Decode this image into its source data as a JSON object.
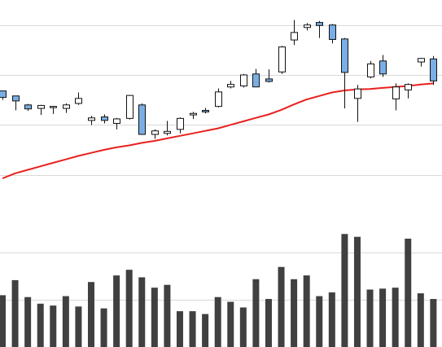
{
  "chart_data": {
    "type": "candlestick",
    "title": "",
    "xlabel": "",
    "ylabel": "",
    "grid": true,
    "legend": "none",
    "colors": {
      "up_fill": "#ffffff",
      "down_fill": "#7aaee6",
      "wick": "#111111",
      "moving_average": "#e8211e",
      "volume": "#404040",
      "grid": "#d9d9d9"
    },
    "ylim": [
      15,
      60
    ],
    "volume_ylim": [
      0,
      160
    ],
    "candles": [
      {
        "o": 41.8,
        "h": 41.8,
        "l": 40.0,
        "c": 40.5
      },
      {
        "o": 40.8,
        "h": 40.8,
        "l": 37.9,
        "c": 39.8
      },
      {
        "o": 39.0,
        "h": 39.2,
        "l": 37.8,
        "c": 38.2
      },
      {
        "o": 38.3,
        "h": 39.0,
        "l": 37.0,
        "c": 38.9
      },
      {
        "o": 38.6,
        "h": 38.8,
        "l": 37.2,
        "c": 38.7
      },
      {
        "o": 38.3,
        "h": 39.3,
        "l": 37.4,
        "c": 39.0
      },
      {
        "o": 39.3,
        "h": 41.5,
        "l": 39.0,
        "c": 40.3
      },
      {
        "o": 35.9,
        "h": 36.8,
        "l": 35.0,
        "c": 36.4
      },
      {
        "o": 36.6,
        "h": 37.1,
        "l": 35.3,
        "c": 35.9
      },
      {
        "o": 35.3,
        "h": 36.4,
        "l": 34.1,
        "c": 36.2
      },
      {
        "o": 36.3,
        "h": 41.0,
        "l": 36.1,
        "c": 40.9
      },
      {
        "o": 39.0,
        "h": 39.3,
        "l": 33.0,
        "c": 33.1
      },
      {
        "o": 33.1,
        "h": 34.1,
        "l": 32.2,
        "c": 33.8
      },
      {
        "o": 33.3,
        "h": 35.8,
        "l": 32.9,
        "c": 33.7
      },
      {
        "o": 34.1,
        "h": 36.5,
        "l": 33.3,
        "c": 36.3
      },
      {
        "o": 37.0,
        "h": 37.6,
        "l": 36.2,
        "c": 37.3
      },
      {
        "o": 37.9,
        "h": 38.4,
        "l": 37.3,
        "c": 37.6
      },
      {
        "o": 38.7,
        "h": 42.3,
        "l": 38.5,
        "c": 41.6
      },
      {
        "o": 42.6,
        "h": 43.8,
        "l": 42.3,
        "c": 43.1
      },
      {
        "o": 42.8,
        "h": 45.2,
        "l": 42.5,
        "c": 45.0
      },
      {
        "o": 45.2,
        "h": 46.2,
        "l": 42.7,
        "c": 42.6
      },
      {
        "o": 44.2,
        "h": 46.1,
        "l": 43.5,
        "c": 43.7
      },
      {
        "o": 45.6,
        "h": 50.8,
        "l": 45.2,
        "c": 50.6
      },
      {
        "o": 52.0,
        "h": 56.0,
        "l": 51.0,
        "c": 53.5
      },
      {
        "o": 54.5,
        "h": 55.4,
        "l": 53.9,
        "c": 55.0
      },
      {
        "o": 55.5,
        "h": 55.8,
        "l": 52.4,
        "c": 54.9
      },
      {
        "o": 55.0,
        "h": 55.2,
        "l": 51.3,
        "c": 52.1
      },
      {
        "o": 52.2,
        "h": 52.4,
        "l": 38.3,
        "c": 45.5
      },
      {
        "o": 40.3,
        "h": 43.0,
        "l": 35.6,
        "c": 42.2
      },
      {
        "o": 44.6,
        "h": 47.8,
        "l": 44.3,
        "c": 47.2
      },
      {
        "o": 47.8,
        "h": 49.0,
        "l": 44.6,
        "c": 45.2
      },
      {
        "o": 40.2,
        "h": 43.3,
        "l": 37.9,
        "c": 42.6
      },
      {
        "o": 42.0,
        "h": 43.3,
        "l": 40.3,
        "c": 43.1
      },
      {
        "o": 47.6,
        "h": 48.4,
        "l": 46.7,
        "c": 48.3
      },
      {
        "o": 48.2,
        "h": 48.8,
        "l": 43.0,
        "c": 43.8
      }
    ],
    "moving_average": [
      24.3,
      25.3,
      26.0,
      26.7,
      27.4,
      28.1,
      28.8,
      29.4,
      30.0,
      30.5,
      30.9,
      31.4,
      31.8,
      32.3,
      32.8,
      33.3,
      33.8,
      34.3,
      35.0,
      35.7,
      36.4,
      37.1,
      38.0,
      39.1,
      40.1,
      40.8,
      41.5,
      41.9,
      42.1,
      42.2,
      42.4,
      42.6,
      42.8,
      43.1,
      43.3
    ],
    "volume": [
      55,
      71,
      53,
      46,
      44,
      54,
      43,
      69,
      41,
      76,
      82,
      74,
      63,
      66,
      38,
      38,
      35,
      53,
      48,
      42,
      72,
      51,
      85,
      72,
      76,
      54,
      58,
      120,
      117,
      61,
      62,
      63,
      115,
      57,
      51
    ]
  }
}
